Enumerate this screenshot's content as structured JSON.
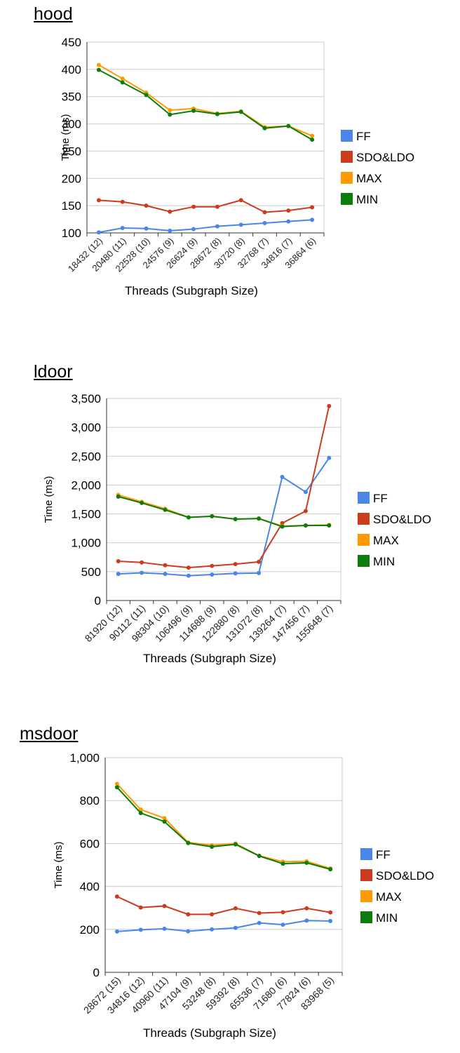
{
  "chart_data": [
    {
      "type": "line",
      "title": "hood",
      "xlabel": "Threads (Subgraph Size)",
      "ylabel": "Time (ms)",
      "ylim": [
        100,
        450
      ],
      "yticks": [
        100,
        150,
        200,
        250,
        300,
        350,
        400,
        450
      ],
      "ytick_labels": [
        "100",
        "150",
        "200",
        "250",
        "300",
        "350",
        "400",
        "450"
      ],
      "grid": true,
      "legend": "right",
      "categories": [
        "18432 (12)",
        "20480 (11)",
        "22528 (10)",
        "24576 (9)",
        "26624 (9)",
        "28672 (8)",
        "30720 (8)",
        "32768 (7)",
        "34816 (7)",
        "36864 (6)"
      ],
      "series": [
        {
          "name": "FF",
          "color": "#4a86e8",
          "values": [
            101,
            109,
            108,
            104,
            107,
            112,
            115,
            118,
            121,
            124
          ]
        },
        {
          "name": "SDO&LDO",
          "color": "#cc3b1b",
          "values": [
            160,
            157,
            150,
            139,
            148,
            148,
            160,
            138,
            141,
            147
          ]
        },
        {
          "name": "MAX",
          "color": "#ff9900",
          "values": [
            408,
            383,
            357,
            325,
            328,
            319,
            323,
            294,
            296,
            278
          ]
        },
        {
          "name": "MIN",
          "color": "#0a7d0a",
          "values": [
            399,
            376,
            353,
            317,
            324,
            318,
            322,
            292,
            296,
            271
          ]
        }
      ]
    },
    {
      "type": "line",
      "title": "ldoor",
      "xlabel": "Threads (Subgraph Size)",
      "ylabel": "Time (ms)",
      "ylim": [
        0,
        3500
      ],
      "yticks": [
        0,
        500,
        1000,
        1500,
        2000,
        2500,
        3000,
        3500
      ],
      "ytick_labels": [
        "0",
        "500",
        "1,000",
        "1,500",
        "2,000",
        "2,500",
        "3,000",
        "3,500"
      ],
      "grid": true,
      "legend": "right",
      "categories": [
        "81920 (12)",
        "90112 (11)",
        "98304 (10)",
        "106496 (9)",
        "114688 (9)",
        "122880 (8)",
        "131072 (8)",
        "139264 (7)",
        "147456 (7)",
        "155648 (7)"
      ],
      "series": [
        {
          "name": "FF",
          "color": "#4a86e8",
          "values": [
            460,
            480,
            460,
            430,
            450,
            470,
            475,
            2140,
            1880,
            2470
          ]
        },
        {
          "name": "SDO&LDO",
          "color": "#cc3b1b",
          "values": [
            680,
            660,
            610,
            570,
            600,
            630,
            670,
            1340,
            1550,
            3370
          ]
        },
        {
          "name": "MAX",
          "color": "#ff9900",
          "values": [
            1830,
            1710,
            1590,
            1440,
            1460,
            1410,
            1420,
            1290,
            1300,
            1310
          ]
        },
        {
          "name": "MIN",
          "color": "#0a7d0a",
          "values": [
            1800,
            1690,
            1570,
            1440,
            1460,
            1410,
            1420,
            1280,
            1300,
            1300
          ]
        }
      ]
    },
    {
      "type": "line",
      "title": "msdoor",
      "xlabel": "Threads (Subgraph Size)",
      "ylabel": "Time (ms)",
      "ylim": [
        0,
        1000
      ],
      "yticks": [
        0,
        200,
        400,
        600,
        800,
        1000
      ],
      "ytick_labels": [
        "0",
        "200",
        "400",
        "600",
        "800",
        "1,000"
      ],
      "grid": true,
      "legend": "right",
      "categories": [
        "28672 (15)",
        "34816 (12)",
        "40960 (11)",
        "47104 (9)",
        "53248 (8)",
        "59392 (8)",
        "65536 (7)",
        "71680 (6)",
        "77824 (6)",
        "83968 (5)"
      ],
      "series": [
        {
          "name": "FF",
          "color": "#4a86e8",
          "values": [
            190,
            198,
            203,
            191,
            200,
            207,
            230,
            222,
            241,
            239
          ]
        },
        {
          "name": "SDO&LDO",
          "color": "#cc3b1b",
          "values": [
            353,
            302,
            309,
            270,
            270,
            298,
            276,
            280,
            298,
            279
          ]
        },
        {
          "name": "MAX",
          "color": "#ff9900",
          "values": [
            878,
            758,
            718,
            605,
            592,
            600,
            543,
            515,
            517,
            484
          ]
        },
        {
          "name": "MIN",
          "color": "#0a7d0a",
          "values": [
            862,
            742,
            702,
            602,
            585,
            596,
            542,
            506,
            510,
            480
          ]
        }
      ]
    }
  ]
}
